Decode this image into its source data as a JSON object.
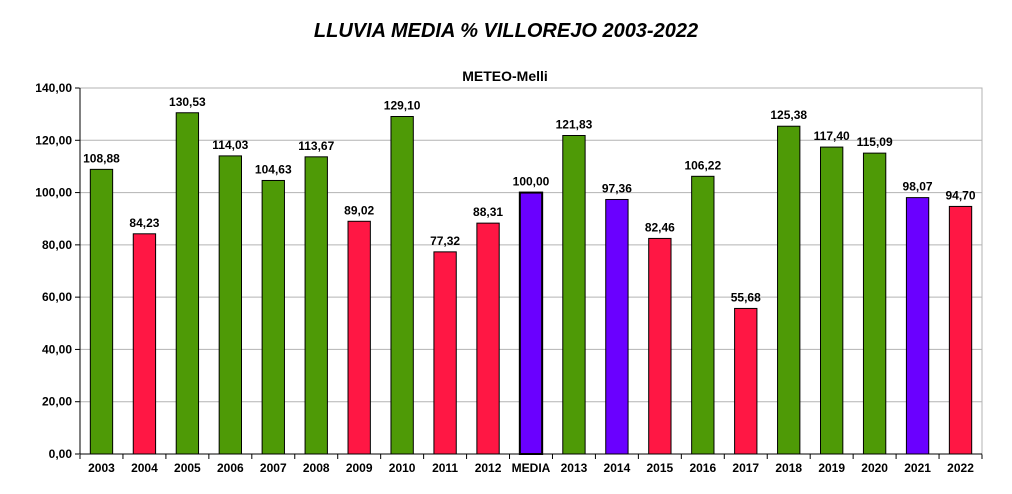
{
  "chart_data": {
    "type": "bar",
    "title": "LLUVIA MEDIA % VILLOREJO 2003-2022",
    "subtitle": "METEO-Melli",
    "xlabel": "",
    "ylabel": "",
    "ylim": [
      0,
      140
    ],
    "ytick_step": 20,
    "ytick_labels": [
      "0,00",
      "20,00",
      "40,00",
      "60,00",
      "80,00",
      "100,00",
      "120,00",
      "140,00"
    ],
    "grid": true,
    "legend": "none",
    "colors": {
      "green": "#4e9a06",
      "red": "#ff1744",
      "purple": "#6a00ff",
      "grid": "#b3b3b3",
      "axis": "#000000"
    },
    "categories": [
      "2003",
      "2004",
      "2005",
      "2006",
      "2007",
      "2008",
      "2009",
      "2010",
      "2011",
      "2012",
      "MEDIA",
      "2013",
      "2014",
      "2015",
      "2016",
      "2017",
      "2018",
      "2019",
      "2020",
      "2021",
      "2022"
    ],
    "values": [
      108.88,
      84.23,
      130.53,
      114.03,
      104.63,
      113.67,
      89.02,
      129.1,
      77.32,
      88.31,
      100.0,
      121.83,
      97.36,
      82.46,
      106.22,
      55.68,
      125.38,
      117.4,
      115.09,
      98.07,
      94.7
    ],
    "value_labels": [
      "108,88",
      "84,23",
      "130,53",
      "114,03",
      "104,63",
      "113,67",
      "89,02",
      "129,10",
      "77,32",
      "88,31",
      "100,00",
      "121,83",
      "97,36",
      "82,46",
      "106,22",
      "55,68",
      "125,38",
      "117,40",
      "115,09",
      "98,07",
      "94,70"
    ],
    "bar_colors": [
      "green",
      "red",
      "green",
      "green",
      "green",
      "green",
      "red",
      "green",
      "red",
      "red",
      "purple",
      "green",
      "purple",
      "red",
      "green",
      "red",
      "green",
      "green",
      "green",
      "purple",
      "red"
    ]
  }
}
